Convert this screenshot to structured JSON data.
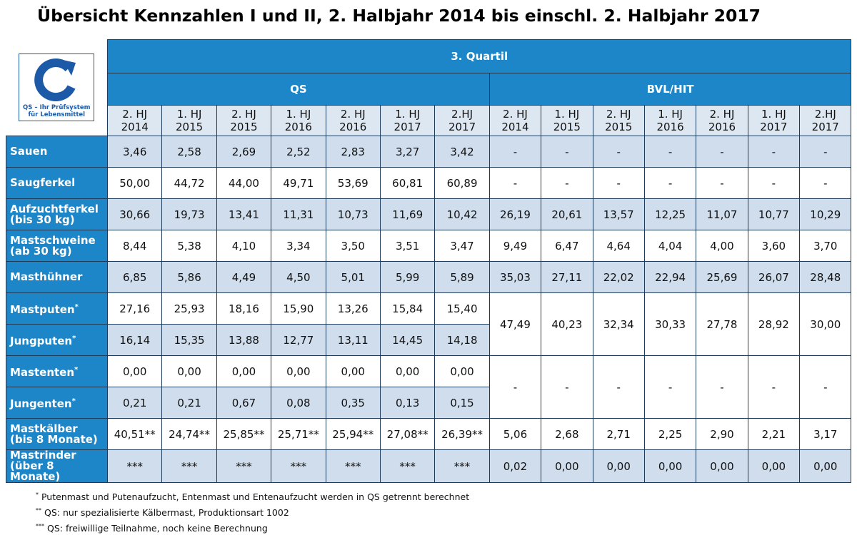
{
  "title": "Übersicht Kennzahlen I und II, 2. Halbjahr 2014 bis einschl. 2. Halbjahr 2017",
  "logo": {
    "lines": [
      "QS – Ihr Prüfsystem",
      "für Lebensmittel"
    ]
  },
  "header": {
    "top": "3. Quartil",
    "groups": [
      {
        "name": "QS",
        "periods": [
          [
            "2. HJ",
            "2014"
          ],
          [
            "1. HJ",
            "2015"
          ],
          [
            "2. HJ",
            "2015"
          ],
          [
            "1. HJ",
            "2016"
          ],
          [
            "2. HJ",
            "2016"
          ],
          [
            "1. HJ",
            "2017"
          ],
          [
            "2.HJ",
            "2017"
          ]
        ]
      },
      {
        "name": "BVL/HIT",
        "periods": [
          [
            "2. HJ",
            "2014"
          ],
          [
            "1. HJ",
            "2015"
          ],
          [
            "2. HJ",
            "2015"
          ],
          [
            "1. HJ",
            "2016"
          ],
          [
            "2. HJ",
            "2016"
          ],
          [
            "1. HJ",
            "2017"
          ],
          [
            "2.HJ",
            "2017"
          ]
        ]
      }
    ]
  },
  "rows": [
    {
      "label": [
        "Sauen"
      ],
      "qs": [
        "3,46",
        "2,58",
        "2,69",
        "2,52",
        "2,83",
        "3,27",
        "3,42"
      ],
      "bvl": [
        "-",
        "-",
        "-",
        "-",
        "-",
        "-",
        "-"
      ]
    },
    {
      "label": [
        "Saugferkel"
      ],
      "qs": [
        "50,00",
        "44,72",
        "44,00",
        "49,71",
        "53,69",
        "60,81",
        "60,89"
      ],
      "bvl": [
        "-",
        "-",
        "-",
        "-",
        "-",
        "-",
        "-"
      ]
    },
    {
      "label": [
        "Aufzuchtferkel",
        "(bis 30 kg)"
      ],
      "qs": [
        "30,66",
        "19,73",
        "13,41",
        "11,31",
        "10,73",
        "11,69",
        "10,42"
      ],
      "bvl": [
        "26,19",
        "20,61",
        "13,57",
        "12,25",
        "11,07",
        "10,77",
        "10,29"
      ]
    },
    {
      "label": [
        "Mastschweine",
        "(ab 30 kg)"
      ],
      "qs": [
        "8,44",
        "5,38",
        "4,10",
        "3,34",
        "3,50",
        "3,51",
        "3,47"
      ],
      "bvl": [
        "9,49",
        "6,47",
        "4,64",
        "4,04",
        "4,00",
        "3,60",
        "3,70"
      ]
    },
    {
      "label": [
        "Masthühner"
      ],
      "qs": [
        "6,85",
        "5,86",
        "4,49",
        "4,50",
        "5,01",
        "5,99",
        "5,89"
      ],
      "bvl": [
        "35,03",
        "27,11",
        "22,02",
        "22,94",
        "25,69",
        "26,07",
        "28,48"
      ]
    },
    {
      "label": [
        "Mastputen"
      ],
      "note": "*",
      "qs": [
        "27,16",
        "25,93",
        "18,16",
        "15,90",
        "13,26",
        "15,84",
        "15,40"
      ],
      "bvl": [
        "47,49",
        "40,23",
        "32,34",
        "30,33",
        "27,78",
        "28,92",
        "30,00"
      ]
    },
    {
      "label": [
        "Jungputen"
      ],
      "note": "*",
      "qs": [
        "16,14",
        "15,35",
        "13,88",
        "12,77",
        "13,11",
        "14,45",
        "14,18"
      ]
    },
    {
      "label": [
        "Mastenten"
      ],
      "note": "*",
      "qs": [
        "0,00",
        "0,00",
        "0,00",
        "0,00",
        "0,00",
        "0,00",
        "0,00"
      ],
      "bvl": [
        "-",
        "-",
        "-",
        "-",
        "-",
        "-",
        "-"
      ]
    },
    {
      "label": [
        "Jungenten"
      ],
      "note": "*",
      "qs": [
        "0,21",
        "0,21",
        "0,67",
        "0,08",
        "0,35",
        "0,13",
        "0,15"
      ]
    },
    {
      "label": [
        "Mastkälber",
        "(bis 8 Monate)"
      ],
      "qs": [
        "40,51**",
        "24,74**",
        "25,85**",
        "25,71**",
        "25,94**",
        "27,08**",
        "26,39**"
      ],
      "bvl": [
        "5,06",
        "2,68",
        "2,71",
        "2,25",
        "2,90",
        "2,21",
        "3,17"
      ]
    },
    {
      "label": [
        "Mastrinder",
        "(über 8",
        "Monate)"
      ],
      "qs": [
        "***",
        "***",
        "***",
        "***",
        "***",
        "***",
        "***"
      ],
      "bvl": [
        "0,02",
        "0,00",
        "0,00",
        "0,00",
        "0,00",
        "0,00",
        "0,00"
      ]
    }
  ],
  "footnotes": [
    {
      "marker": "*",
      "text": "Putenmast und Putenaufzucht, Entenmast und Entenaufzucht werden in QS getrennt berechnet"
    },
    {
      "marker": "**",
      "text": "QS: nur spezialisierte Kälbermast, Produktionsart 1002"
    },
    {
      "marker": "***",
      "text": "QS: freiwillige Teilnahme, noch keine Berechnung"
    }
  ]
}
